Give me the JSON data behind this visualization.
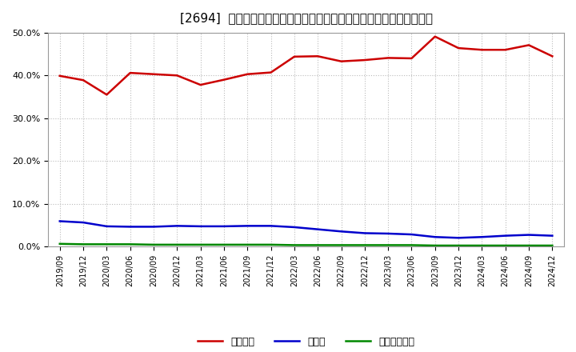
{
  "title": "[2694]  自己資本、のれん、繰延税金資産の総資産に対する比率の推移",
  "x_labels": [
    "2019/09",
    "2019/12",
    "2020/03",
    "2020/06",
    "2020/09",
    "2020/12",
    "2021/03",
    "2021/06",
    "2021/09",
    "2021/12",
    "2022/03",
    "2022/06",
    "2022/09",
    "2022/12",
    "2023/03",
    "2023/06",
    "2023/09",
    "2023/12",
    "2024/03",
    "2024/06",
    "2024/09",
    "2024/12"
  ],
  "jiko_shihon": [
    0.399,
    0.389,
    0.355,
    0.406,
    0.403,
    0.4,
    0.378,
    0.39,
    0.403,
    0.407,
    0.444,
    0.445,
    0.433,
    0.436,
    0.441,
    0.44,
    0.491,
    0.464,
    0.46,
    0.46,
    0.471,
    0.445
  ],
  "noren": [
    0.059,
    0.056,
    0.047,
    0.046,
    0.046,
    0.048,
    0.047,
    0.047,
    0.048,
    0.048,
    0.045,
    0.04,
    0.035,
    0.031,
    0.03,
    0.028,
    0.022,
    0.02,
    0.022,
    0.025,
    0.027,
    0.025
  ],
  "kurinobe_zeikin": [
    0.006,
    0.005,
    0.005,
    0.005,
    0.004,
    0.004,
    0.004,
    0.004,
    0.004,
    0.004,
    0.003,
    0.003,
    0.003,
    0.003,
    0.003,
    0.003,
    0.002,
    0.002,
    0.002,
    0.002,
    0.002,
    0.002
  ],
  "jiko_color": "#cc0000",
  "noren_color": "#0000cc",
  "kurinobe_color": "#008800",
  "ylim": [
    0.0,
    0.5
  ],
  "yticks": [
    0.0,
    0.1,
    0.2,
    0.3,
    0.4,
    0.5
  ],
  "bg_color": "#ffffff",
  "plot_bg_color": "#ffffff",
  "grid_color": "#bbbbbb",
  "legend_labels": [
    "自己資本",
    "のれん",
    "繰延税金資産"
  ]
}
